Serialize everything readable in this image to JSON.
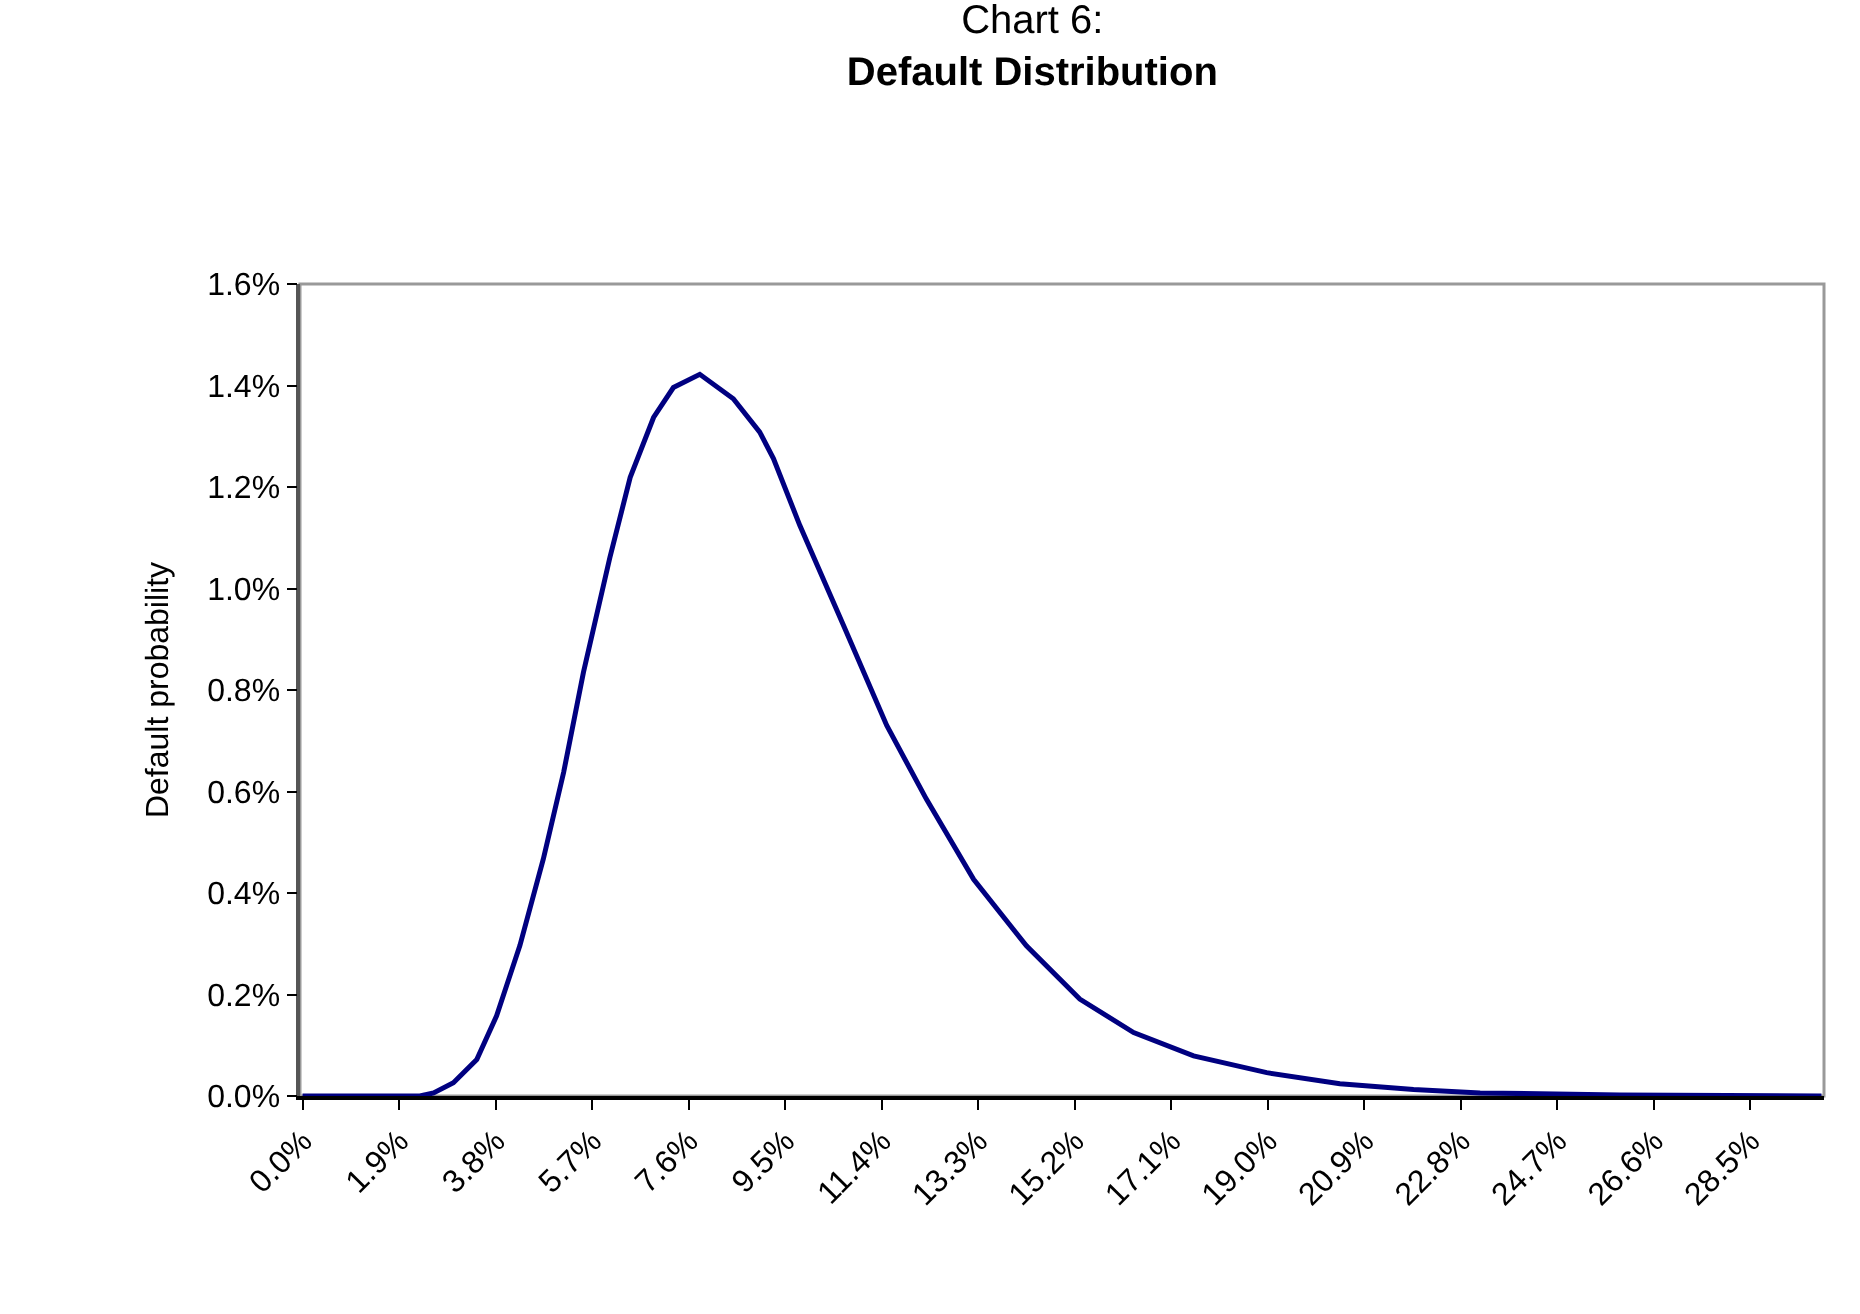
{
  "chart_data": {
    "type": "line",
    "title": "Chart 6:",
    "subtitle": "Default Distribution",
    "ylabel": "Default probability",
    "x": [
      0,
      2.31,
      2.58,
      2.97,
      3.43,
      3.82,
      4.28,
      4.74,
      5.14,
      5.53,
      6.05,
      6.45,
      6.91,
      7.3,
      7.82,
      8.48,
      9.0,
      9.27,
      9.79,
      10.65,
      11.5,
      12.28,
      13.21,
      14.25,
      15.3,
      16.36,
      17.54,
      18.98,
      20.42,
      21.87,
      23.18,
      25.93,
      29.9
    ],
    "series": [
      {
        "color": "#000080",
        "values": [
          0,
          0,
          0.006,
          0.026,
          0.072,
          0.158,
          0.297,
          0.467,
          0.638,
          0.835,
          1.061,
          1.219,
          1.337,
          1.396,
          1.422,
          1.374,
          1.308,
          1.256,
          1.124,
          0.927,
          0.73,
          0.585,
          0.427,
          0.296,
          0.191,
          0.125,
          0.079,
          0.046,
          0.024,
          0.013,
          0.006,
          0.002,
          0
        ]
      }
    ],
    "xlim": [
      -0.05,
      29.95
    ],
    "xticks": [
      {
        "value": 0,
        "label": "0.0%"
      },
      {
        "value": 1.9,
        "label": "1.9%"
      },
      {
        "value": 3.8,
        "label": "3.8%"
      },
      {
        "value": 5.7,
        "label": "5.7%"
      },
      {
        "value": 7.6,
        "label": "7.6%"
      },
      {
        "value": 9.5,
        "label": "9.5%"
      },
      {
        "value": 11.4,
        "label": "11.4%"
      },
      {
        "value": 13.3,
        "label": "13.3%"
      },
      {
        "value": 15.2,
        "label": "15.2%"
      },
      {
        "value": 17.1,
        "label": "17.1%"
      },
      {
        "value": 19.0,
        "label": "19.0%"
      },
      {
        "value": 20.9,
        "label": "20.9%"
      },
      {
        "value": 22.8,
        "label": "22.8%"
      },
      {
        "value": 24.7,
        "label": "24.7%"
      },
      {
        "value": 26.6,
        "label": "26.6%"
      },
      {
        "value": 28.5,
        "label": "28.5%"
      }
    ],
    "ylim": [
      0,
      1.6
    ],
    "yticks": [
      {
        "value": 0,
        "label": "0.0%"
      },
      {
        "value": 0.2,
        "label": "0.2%"
      },
      {
        "value": 0.4,
        "label": "0.4%"
      },
      {
        "value": 0.6,
        "label": "0.6%"
      },
      {
        "value": 0.8,
        "label": "0.8%"
      },
      {
        "value": 1.0,
        "label": "1.0%"
      },
      {
        "value": 1.2,
        "label": "1.2%"
      },
      {
        "value": 1.4,
        "label": "1.4%"
      },
      {
        "value": 1.6,
        "label": "1.6%"
      }
    ],
    "grid": false,
    "marker": "none",
    "line_style": "solid"
  }
}
